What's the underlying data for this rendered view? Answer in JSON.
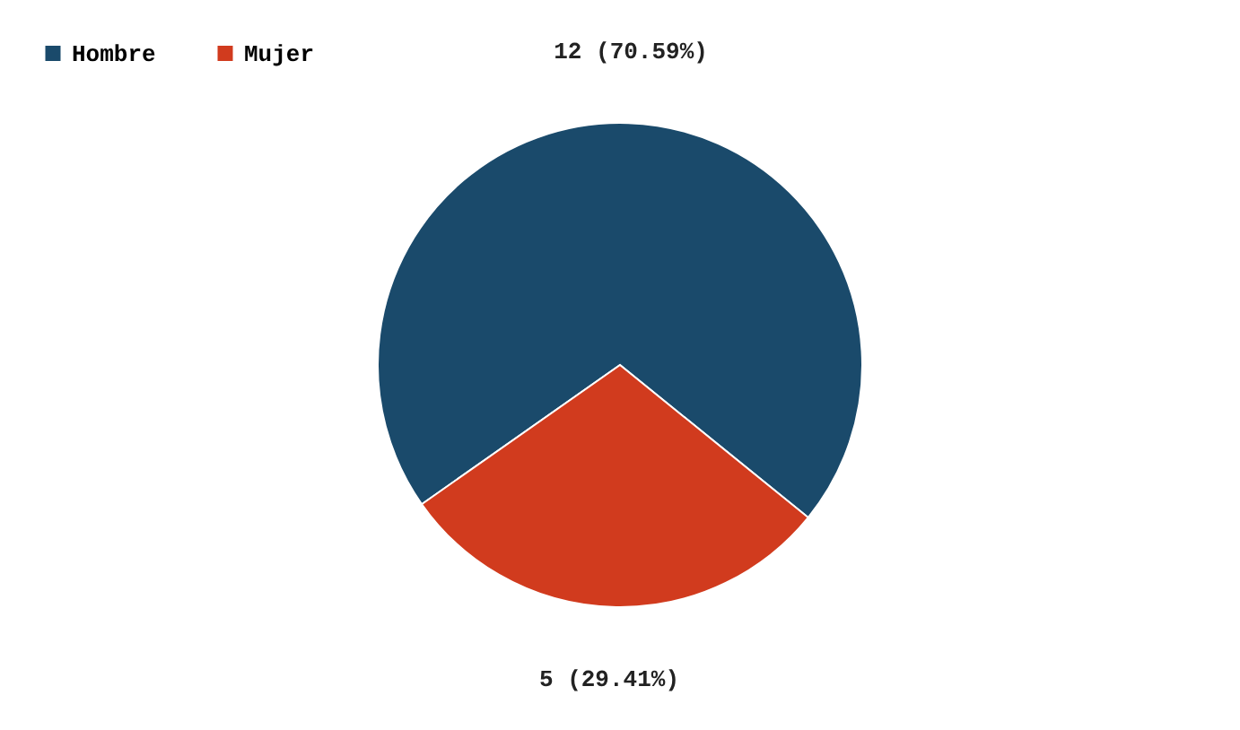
{
  "chart_data": {
    "type": "pie",
    "categories": [
      "Hombre",
      "Mujer"
    ],
    "values": [
      12,
      5
    ],
    "colors": [
      "#1a4a6b",
      "#d13b1e"
    ],
    "value_labels": [
      "12 (70.59%)",
      "5 (29.41%)"
    ],
    "legend": "top left"
  }
}
